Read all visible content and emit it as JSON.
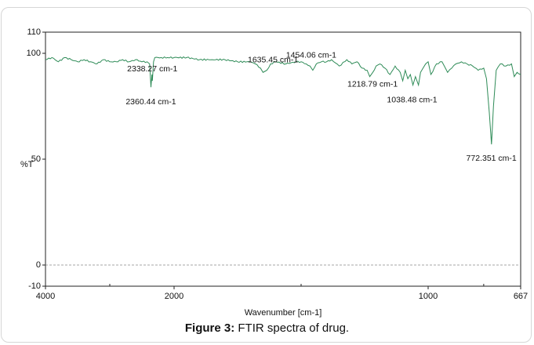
{
  "caption": {
    "label": "Figure 3:",
    "text": " FTIR spectra of drug."
  },
  "chart_data": {
    "type": "line",
    "xlabel": "Wavenumber [cm-1]",
    "ylabel": "%T",
    "xlim": [
      4000,
      667
    ],
    "ylim": [
      -10,
      110
    ],
    "x_axis": "linear-decreasing-two-segment (4000-2000, 2000-667)",
    "x_ticks": [
      "4000",
      "2000",
      "1000",
      "667"
    ],
    "y_ticks": [
      "110",
      "100",
      "50",
      "0",
      "-10"
    ],
    "line_color": "#2e8b57",
    "baseline_zero": "dashed gray",
    "series": [
      {
        "x": [
          4000,
          3900,
          3800,
          3700,
          3600,
          3500,
          3400,
          3300,
          3200,
          3100,
          3000,
          2900,
          2800,
          2700,
          2600,
          2500,
          2420,
          2380,
          2360,
          2345,
          2338,
          2320,
          2300,
          2250,
          2200,
          2100,
          2000,
          1950,
          1900,
          1850,
          1800,
          1750,
          1700,
          1680,
          1660,
          1650,
          1635,
          1620,
          1600,
          1560,
          1520,
          1500,
          1480,
          1465,
          1454,
          1440,
          1420,
          1400,
          1380,
          1350,
          1320,
          1300,
          1280,
          1260,
          1240,
          1230,
          1218,
          1205,
          1190,
          1170,
          1150,
          1130,
          1110,
          1100,
          1090,
          1080,
          1070,
          1060,
          1050,
          1038,
          1030,
          1020,
          1010,
          1000,
          990,
          970,
          950,
          930,
          915,
          900,
          880,
          860,
          840,
          820,
          800,
          790,
          780,
          772,
          765,
          755,
          740,
          720,
          700,
          690,
          680,
          667
        ],
        "y": [
          97,
          98,
          96,
          98,
          97,
          96,
          97,
          96,
          95,
          97,
          96,
          96,
          97,
          96,
          97,
          96,
          96,
          95,
          84,
          90,
          87,
          96,
          98,
          98,
          98,
          98,
          98,
          98,
          97,
          97,
          97,
          96,
          96,
          95,
          93,
          91,
          92,
          95,
          96,
          95,
          96,
          96,
          95,
          94,
          92,
          95,
          96,
          96,
          97,
          94,
          97,
          95,
          96,
          93,
          92,
          89,
          91,
          94,
          95,
          93,
          90,
          94,
          91,
          87,
          92,
          88,
          90,
          85,
          89,
          85,
          91,
          93,
          95,
          96,
          90,
          95,
          96,
          91,
          93,
          95,
          96,
          95,
          94,
          92,
          93,
          88,
          72,
          57,
          75,
          92,
          95,
          94,
          95,
          89,
          91,
          90
        ]
      }
    ],
    "annotations": [
      {
        "label": "2338.27 cm-1",
        "x": 2338.27,
        "y": 87
      },
      {
        "label": "2360.44 cm-1",
        "x": 2360.44,
        "y": 84
      },
      {
        "label": "1635.45 cm-1",
        "x": 1635.45,
        "y": 92
      },
      {
        "label": "1454.06 cm-1",
        "x": 1454.06,
        "y": 92
      },
      {
        "label": "1218.79 cm-1",
        "x": 1218.79,
        "y": 91
      },
      {
        "label": "1038.48 cm-1",
        "x": 1038.48,
        "y": 85
      },
      {
        "label": "772.351 cm-1",
        "x": 772.351,
        "y": 57
      }
    ]
  }
}
